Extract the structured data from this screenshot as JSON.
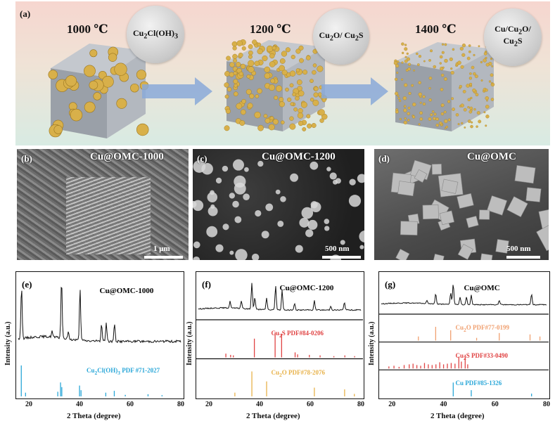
{
  "panel_a": {
    "label": "(a)",
    "stages": [
      {
        "temp": "1000 ℃",
        "phase_html": "Cu<sub>2</sub>Cl(OH)<sub>3</sub>"
      },
      {
        "temp": "1200 ℃",
        "phase_html": "Cu<sub>2</sub>O/ Cu<sub>2</sub>S"
      },
      {
        "temp": "1400 ℃",
        "phase_html": "Cu/Cu<sub>2</sub>O/<br>Cu<sub>2</sub>S"
      }
    ],
    "colors": {
      "particle": "#d8b04a",
      "cube": "#9aa0a8",
      "arrow": "#8aa9d8"
    }
  },
  "sem": [
    {
      "label": "(b)",
      "title": "Cu@OMC-1000",
      "scale": "1 μm"
    },
    {
      "label": "(c)",
      "title": "Cu@OMC-1200",
      "scale": "500 nm"
    },
    {
      "label": "(d)",
      "title": "Cu@OMC",
      "scale": "500 nm"
    }
  ],
  "xrd_common": {
    "ylabel": "Intensity (a.u.)",
    "xlabel": "2 Theta (degree)",
    "xticks": [
      "20",
      "40",
      "60",
      "80"
    ]
  },
  "chart_data": [
    {
      "type": "line",
      "label": "(e)",
      "xlim": [
        15,
        80
      ],
      "sample": "Cu@OMC-1000",
      "peaks": [
        [
          16.3,
          0.9
        ],
        [
          32.3,
          1.0
        ],
        [
          39.7,
          0.85
        ],
        [
          48.3,
          0.3
        ],
        [
          50.2,
          0.32
        ],
        [
          53.5,
          0.3
        ],
        [
          28.5,
          0.1
        ],
        [
          35,
          0.12
        ]
      ],
      "references": [
        {
          "name_html": "Cu<sub>2</sub>Cl(OH)<sub>3</sub> PDF #71-2027",
          "color": "#2aa7d8",
          "sticks": [
            [
              16.2,
              1.0
            ],
            [
              17.9,
              0.12
            ],
            [
              30.8,
              0.15
            ],
            [
              31.9,
              0.45
            ],
            [
              32.4,
              0.3
            ],
            [
              39.5,
              0.35
            ],
            [
              40.1,
              0.2
            ],
            [
              50.0,
              0.12
            ],
            [
              53.4,
              0.18
            ],
            [
              57.8,
              0.05
            ],
            [
              66.9,
              0.07
            ],
            [
              72.5,
              0.04
            ]
          ]
        }
      ]
    },
    {
      "type": "line",
      "label": "(f)",
      "xlim": [
        15,
        80
      ],
      "sample": "Cu@OMC-1200",
      "peaks": [
        [
          27.7,
          0.25
        ],
        [
          32.2,
          0.3
        ],
        [
          36.4,
          1.0
        ],
        [
          37.6,
          0.45
        ],
        [
          42.3,
          0.45
        ],
        [
          45.9,
          0.9
        ],
        [
          48.5,
          0.75
        ],
        [
          53.5,
          0.25
        ],
        [
          61.4,
          0.35
        ],
        [
          73.4,
          0.3
        ],
        [
          68,
          0.15
        ]
      ],
      "references": [
        {
          "name_html": "Cu<sub>2</sub>S PDF#84-0206",
          "color": "#e04444",
          "sticks": [
            [
              26.0,
              0.15
            ],
            [
              27.9,
              0.1
            ],
            [
              29.0,
              0.08
            ],
            [
              37.4,
              0.75
            ],
            [
              45.7,
              1.0
            ],
            [
              48.3,
              0.95
            ],
            [
              53.7,
              0.2
            ],
            [
              54.7,
              0.12
            ],
            [
              59.4,
              0.1
            ],
            [
              63.7,
              0.08
            ],
            [
              69.2,
              0.05
            ],
            [
              73.6,
              0.08
            ],
            [
              77.5,
              0.05
            ]
          ]
        },
        {
          "name_html": "Cu<sub>2</sub>O PDF#78-2076",
          "color": "#e8b24a",
          "sticks": [
            [
              29.6,
              0.15
            ],
            [
              36.4,
              1.0
            ],
            [
              42.3,
              0.6
            ],
            [
              61.4,
              0.35
            ],
            [
              73.5,
              0.28
            ],
            [
              77.4,
              0.1
            ]
          ]
        }
      ]
    },
    {
      "type": "line",
      "label": "(g)",
      "xlim": [
        15,
        80
      ],
      "sample": "Cu@OMC",
      "peaks": [
        [
          36.4,
          0.5
        ],
        [
          42.3,
          0.55
        ],
        [
          43.3,
          1.0
        ],
        [
          46.0,
          0.35
        ],
        [
          48.5,
          0.35
        ],
        [
          50.4,
          0.45
        ],
        [
          61.4,
          0.2
        ],
        [
          74.1,
          0.5
        ],
        [
          33,
          0.15
        ]
      ],
      "references": [
        {
          "name_html": "Cu<sub>2</sub>O PDF#77-0199",
          "color": "#f0a070",
          "sticks": [
            [
              29.6,
              0.3
            ],
            [
              36.4,
              1.0
            ],
            [
              42.3,
              0.75
            ],
            [
              52.5,
              0.2
            ],
            [
              61.4,
              0.55
            ],
            [
              73.5,
              0.45
            ],
            [
              77.4,
              0.3
            ]
          ]
        },
        {
          "name_html": "Cu<sub>2</sub>S PDF#33-0490",
          "color": "#e04444",
          "sticks": [
            [
              18,
              0.15
            ],
            [
              20,
              0.2
            ],
            [
              22,
              0.12
            ],
            [
              24,
              0.25
            ],
            [
              26,
              0.3
            ],
            [
              27.5,
              0.35
            ],
            [
              29,
              0.25
            ],
            [
              30.5,
              0.2
            ],
            [
              32,
              0.4
            ],
            [
              33.5,
              0.3
            ],
            [
              35,
              0.25
            ],
            [
              36.5,
              0.3
            ],
            [
              38,
              0.45
            ],
            [
              39.5,
              0.3
            ],
            [
              41,
              0.35
            ],
            [
              42.5,
              0.4
            ],
            [
              44,
              0.35
            ],
            [
              45.5,
              0.85
            ],
            [
              46.5,
              0.5
            ],
            [
              48,
              1.0
            ],
            [
              49,
              0.3
            ]
          ]
        },
        {
          "name_html": "Cu PDF#85-1326",
          "color": "#2aa7d8",
          "sticks": [
            [
              43.3,
              1.0
            ],
            [
              50.4,
              0.45
            ],
            [
              74.1,
              0.2
            ]
          ]
        }
      ]
    }
  ]
}
